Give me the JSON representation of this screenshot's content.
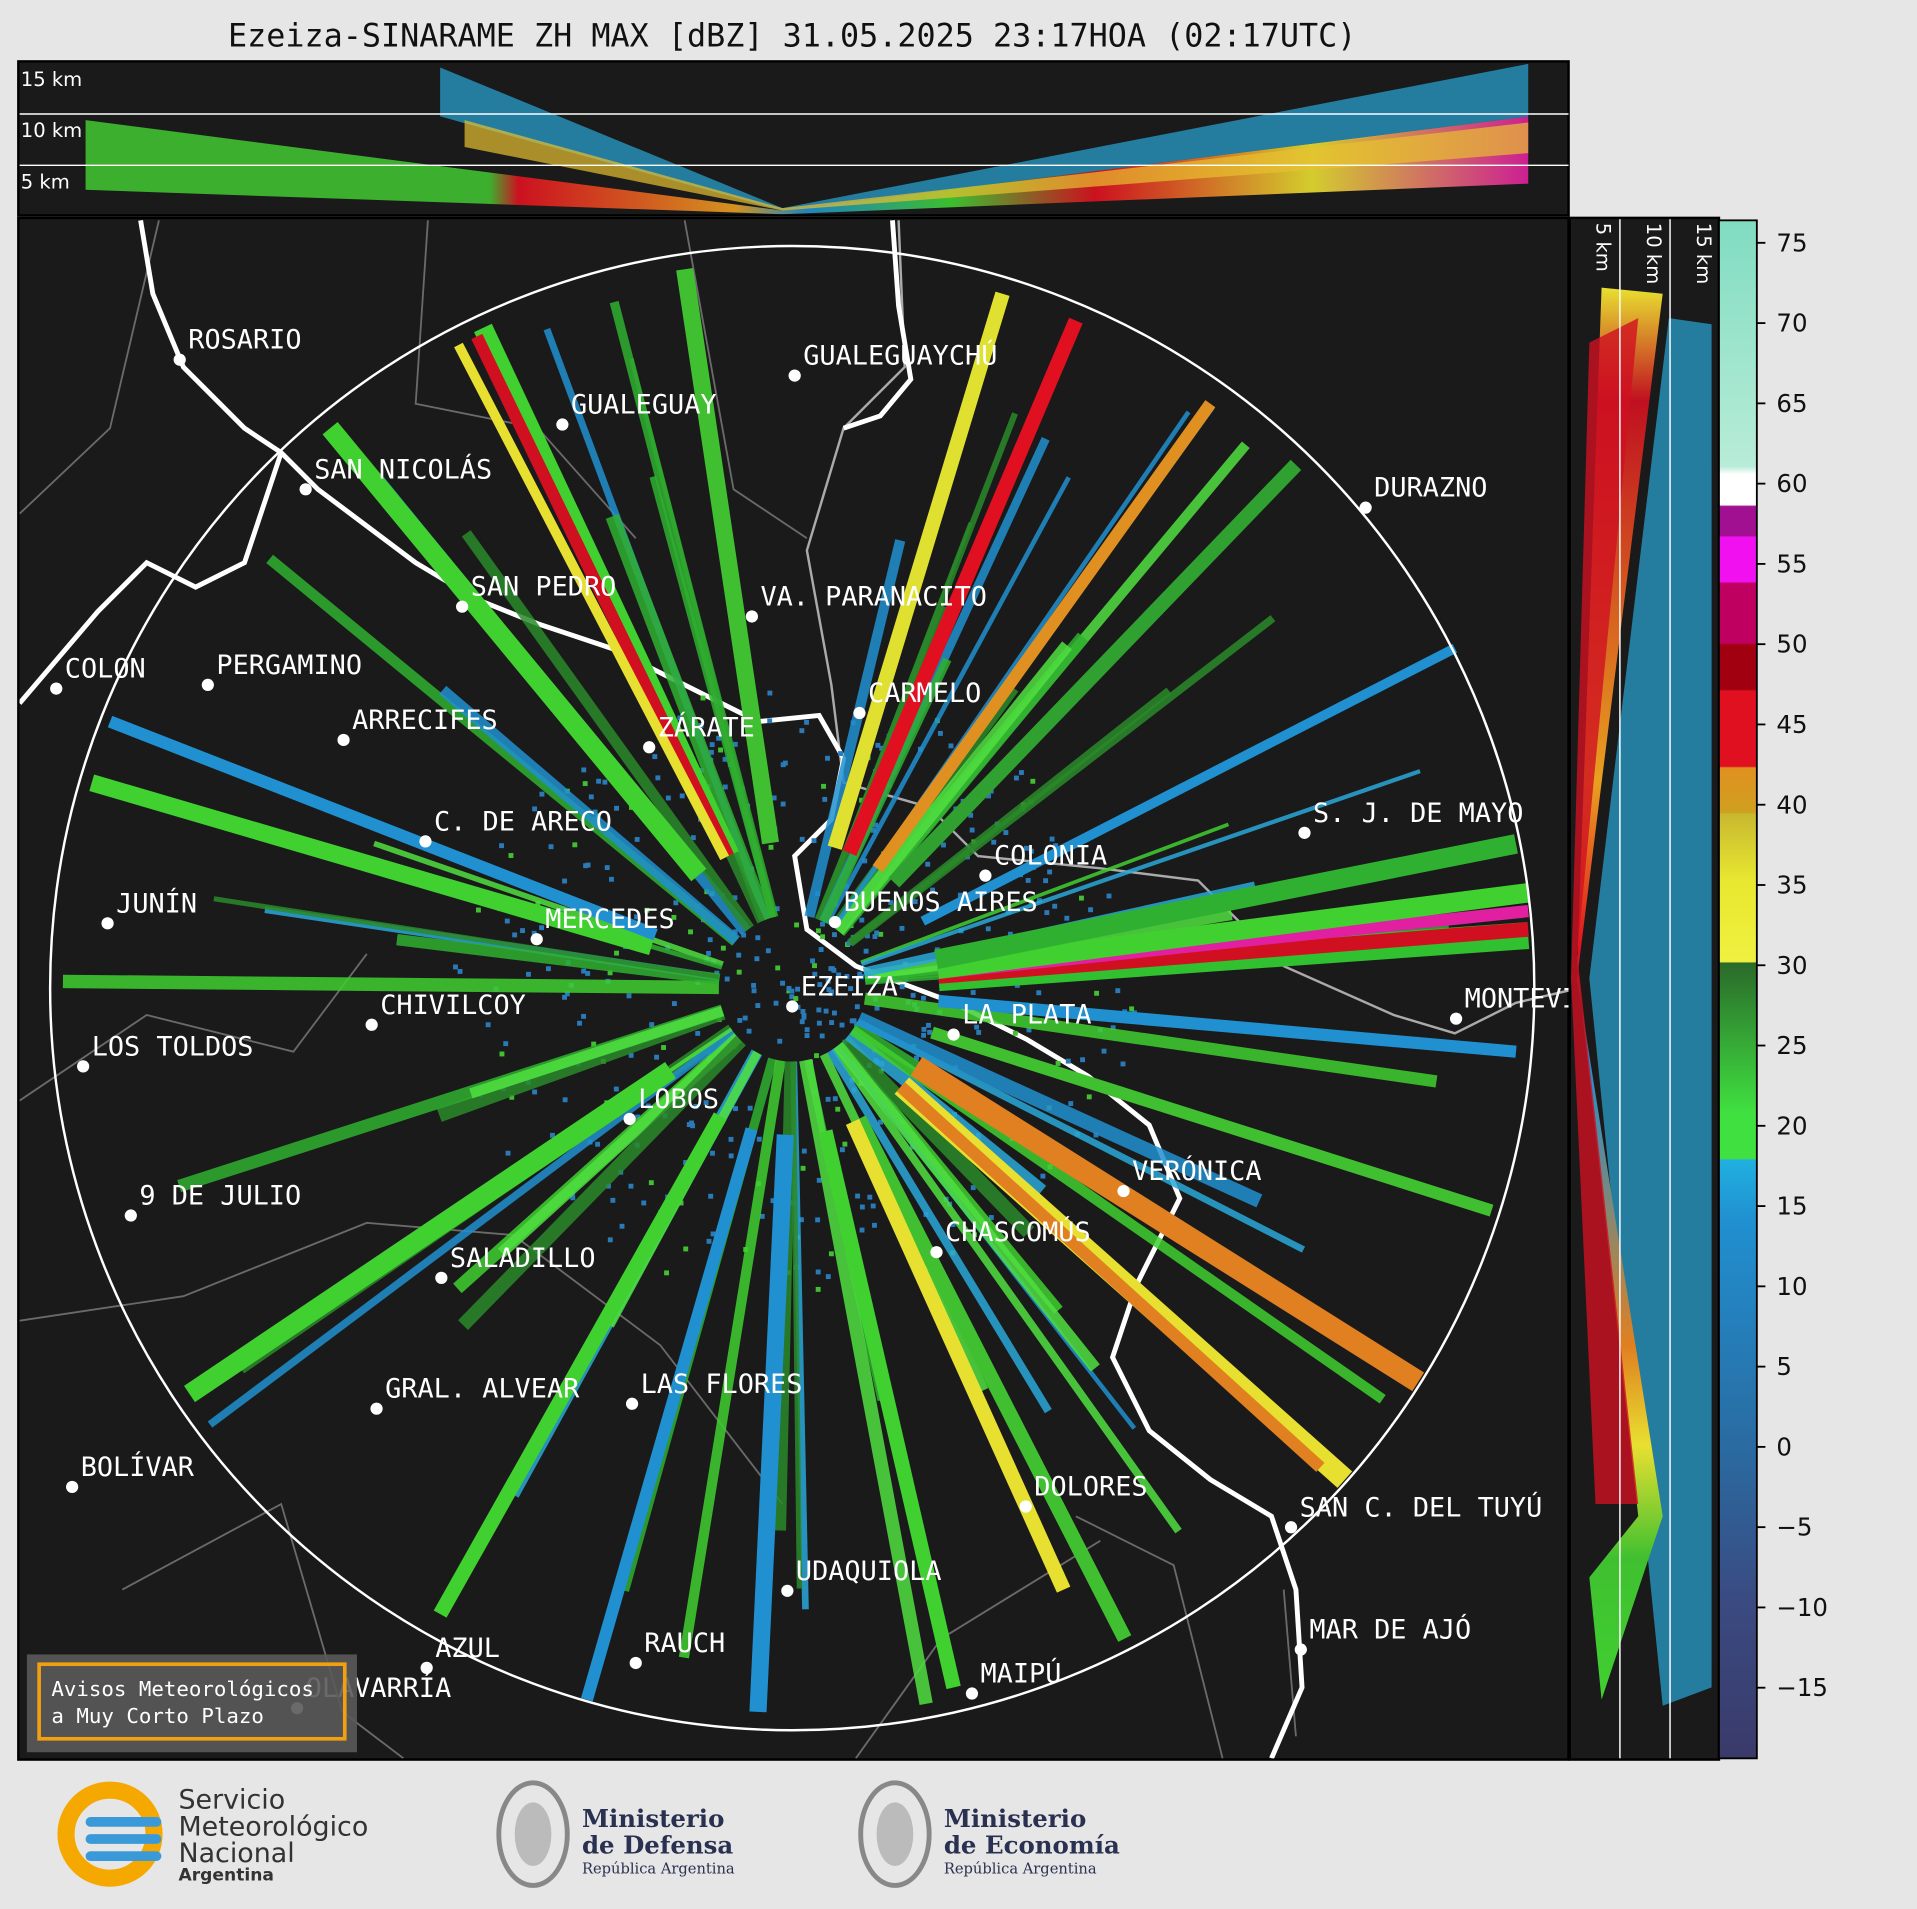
{
  "title": "Ezeiza-SINARAME ZH MAX [dBZ] 31.05.2025 23:17HOA (02:17UTC)",
  "top_panel_labels": [
    "15 km",
    "10 km",
    "5 km"
  ],
  "side_panel_labels": [
    "5 km",
    "10 km",
    "15 km"
  ],
  "cities": [
    "ROSARIO",
    "GUALEGUAYCHÚ",
    "GUALEGUAY",
    "SAN NICOLÁS",
    "DURAZNO",
    "SAN PEDRO",
    "VA. PARANACITO",
    "COLON",
    "PERGAMINO",
    "CARMELO",
    "ARRECIFES",
    "ZÁRATE",
    "S. J. DE MAYO",
    "C. DE ARECO",
    "COLONIA",
    "BUENOS AIRES",
    "JUNÍN",
    "MERCEDES",
    "EZEIZA",
    "CHIVILCOY",
    "LA PLATA",
    "MONTEVIDEO",
    "LOS TOLDOS",
    "LOBOS",
    "VERÓNICA",
    "9 DE JULIO",
    "CHASCOMÚS",
    "SALADILLO",
    "GRAL. ALVEAR",
    "LAS FLORES",
    "BOLÍVAR",
    "DOLORES",
    "SAN C. DEL TUYÚ",
    "UDAQUIOLA",
    "MAR DE AJÓ",
    "AZUL",
    "RAUCH",
    "OLAVARRÍA",
    "MAIPÚ"
  ],
  "notice": [
    "Avisos Meteorológicos",
    "a Muy Corto Plazo"
  ],
  "colorbar": {
    "lim": [
      -19.4,
      76.4
    ],
    "ticks": [
      75,
      70,
      65,
      60,
      55,
      50,
      45,
      40,
      35,
      30,
      25,
      20,
      15,
      10,
      5,
      0,
      {
        "value": -5,
        "label": "−5"
      },
      {
        "value": -10,
        "label": "−10"
      },
      {
        "value": -15,
        "label": "−15"
      }
    ]
  },
  "logos": {
    "smn": [
      "Servicio",
      "Meteorológico",
      "Nacional",
      "Argentina"
    ],
    "defensa": [
      "Ministerio",
      "de Defensa",
      "República Argentina"
    ],
    "economia": [
      "Ministerio",
      "de Economía",
      "República Argentina"
    ]
  }
}
